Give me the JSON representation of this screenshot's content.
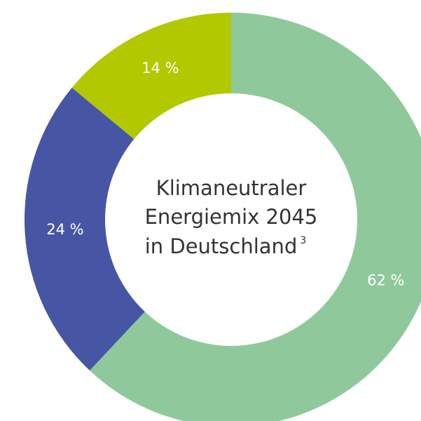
{
  "chart_data": {
    "type": "donut",
    "title": [
      "Klimaneutraler",
      "Energiemix 2045",
      "in Deutschland"
    ],
    "footnote": "3",
    "values": [
      62,
      24,
      14
    ],
    "value_labels": [
      "62 %",
      "24 %",
      "14 %"
    ],
    "colors": [
      "#8fc99b",
      "#4656a4",
      "#b2c800"
    ]
  }
}
